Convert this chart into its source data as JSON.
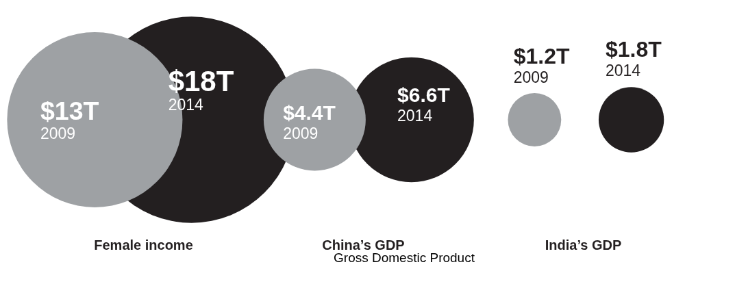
{
  "chart_data": {
    "type": "other",
    "categories": [
      "Female income",
      "China’s GDP",
      "India’s GDP"
    ],
    "series": [
      {
        "name": "2009",
        "color": "#9ea1a4",
        "values": [
          13,
          4.4,
          1.2
        ],
        "value_labels": [
          "$13T",
          "$4.4T",
          "$1.2T"
        ]
      },
      {
        "name": "2014",
        "color": "#231f20",
        "values": [
          18,
          6.6,
          1.8
        ],
        "value_labels": [
          "$18T",
          "$6.6T",
          "$1.8T"
        ]
      }
    ],
    "annotations": [
      "Gross Domestic Product"
    ]
  }
}
